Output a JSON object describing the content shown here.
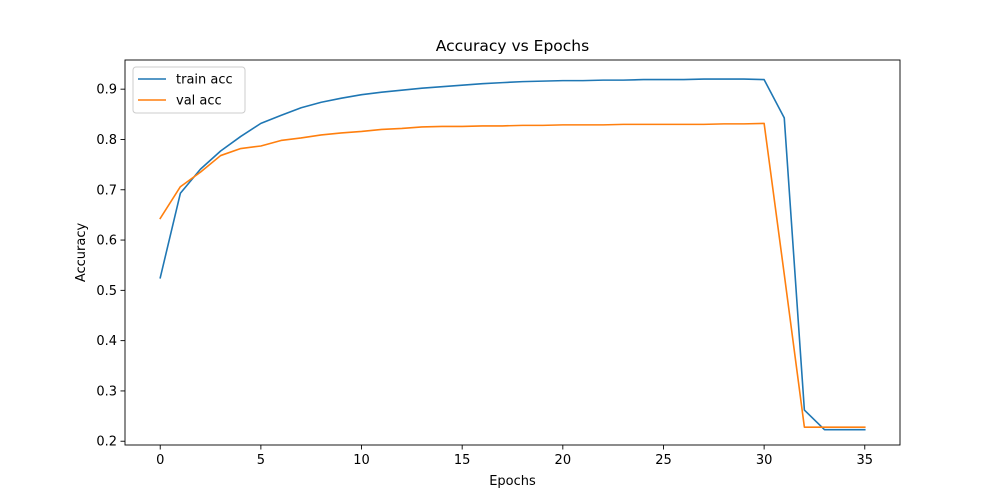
{
  "chart_data": {
    "type": "line",
    "title": "Accuracy vs Epochs",
    "xlabel": "Epochs",
    "ylabel": "Accuracy",
    "xlim": [
      -1.75,
      36.75
    ],
    "ylim": [
      0.1925,
      0.958
    ],
    "xticks": [
      0,
      5,
      10,
      15,
      20,
      25,
      30,
      35
    ],
    "yticks": [
      0.2,
      0.3,
      0.4,
      0.5,
      0.6,
      0.7,
      0.8,
      0.9
    ],
    "xtick_labels": [
      "0",
      "5",
      "10",
      "15",
      "20",
      "25",
      "30",
      "35"
    ],
    "ytick_labels": [
      "0.2",
      "0.3",
      "0.4",
      "0.5",
      "0.6",
      "0.7",
      "0.8",
      "0.9"
    ],
    "grid": false,
    "legend_position": "top-left",
    "x": [
      0,
      1,
      2,
      3,
      4,
      5,
      6,
      7,
      8,
      9,
      10,
      11,
      12,
      13,
      14,
      15,
      16,
      17,
      18,
      19,
      20,
      21,
      22,
      23,
      24,
      25,
      26,
      27,
      28,
      29,
      30,
      31,
      32,
      33,
      34,
      35
    ],
    "series": [
      {
        "name": "train acc",
        "color": "#1f77b4",
        "values": [
          0.525,
          0.693,
          0.741,
          0.777,
          0.806,
          0.832,
          0.848,
          0.863,
          0.874,
          0.882,
          0.889,
          0.894,
          0.898,
          0.902,
          0.905,
          0.908,
          0.911,
          0.913,
          0.915,
          0.916,
          0.917,
          0.917,
          0.918,
          0.918,
          0.919,
          0.919,
          0.919,
          0.92,
          0.92,
          0.92,
          0.919,
          0.843,
          0.262,
          0.223,
          0.223,
          0.223
        ]
      },
      {
        "name": "val acc",
        "color": "#ff7f0e",
        "values": [
          0.643,
          0.706,
          0.735,
          0.768,
          0.782,
          0.787,
          0.798,
          0.803,
          0.809,
          0.813,
          0.816,
          0.82,
          0.822,
          0.825,
          0.826,
          0.826,
          0.827,
          0.827,
          0.828,
          0.828,
          0.829,
          0.829,
          0.829,
          0.83,
          0.83,
          0.83,
          0.83,
          0.83,
          0.831,
          0.831,
          0.832,
          0.532,
          0.228,
          0.228,
          0.228,
          0.228
        ]
      }
    ]
  }
}
